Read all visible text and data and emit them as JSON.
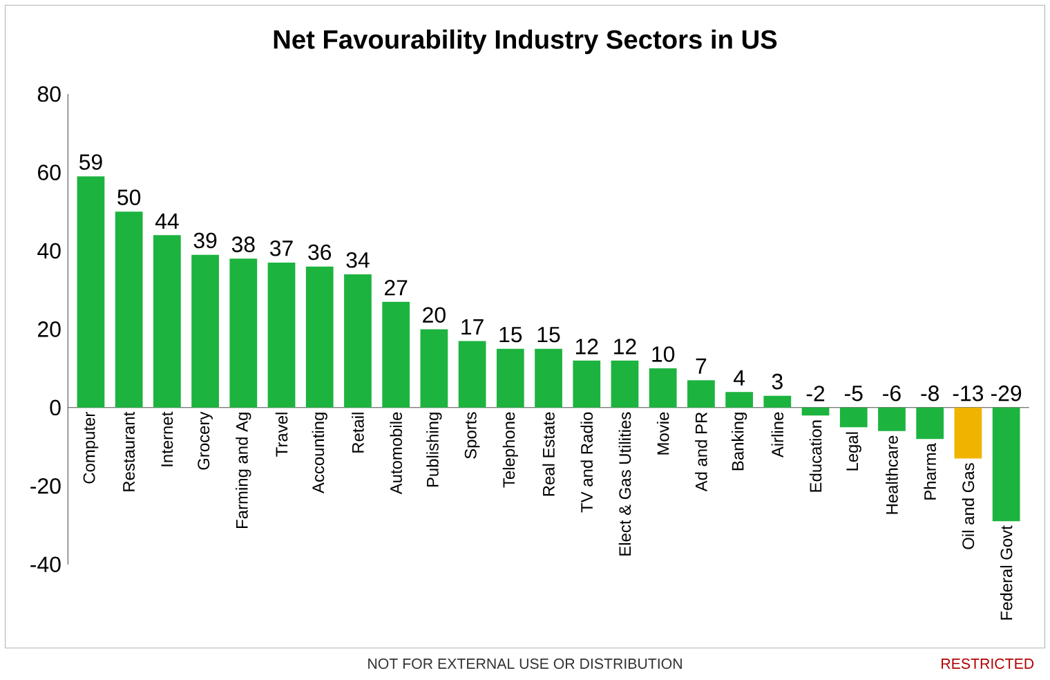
{
  "chart_data": {
    "type": "bar",
    "title": "Net Favourability Industry Sectors in US",
    "categories": [
      "Computer",
      "Restaurant",
      "Internet",
      "Grocery",
      "Farming and Ag",
      "Travel",
      "Accounting",
      "Retail",
      "Automobile",
      "Publishing",
      "Sports",
      "Telephone",
      "Real Estate",
      "TV and Radio",
      "Elect & Gas Utilities",
      "Movie",
      "Ad and PR",
      "Banking",
      "Airline",
      "Education",
      "Legal",
      "Healthcare",
      "Pharma",
      "Oil and Gas",
      "Federal Govt"
    ],
    "values": [
      59,
      50,
      44,
      39,
      38,
      37,
      36,
      34,
      27,
      20,
      17,
      15,
      15,
      12,
      12,
      10,
      7,
      4,
      3,
      -2,
      -5,
      -6,
      -8,
      -13,
      -29
    ],
    "value_labels": [
      "59",
      "50",
      "44",
      "39",
      "38",
      "37",
      "36",
      "34",
      "27",
      "20",
      "17",
      "15",
      "15",
      "12",
      "12",
      "10",
      "7",
      "4",
      "3",
      "-2",
      "-5",
      "-6",
      "-8",
      "-13",
      "-29"
    ],
    "colors": [
      "#1db33f",
      "#1db33f",
      "#1db33f",
      "#1db33f",
      "#1db33f",
      "#1db33f",
      "#1db33f",
      "#1db33f",
      "#1db33f",
      "#1db33f",
      "#1db33f",
      "#1db33f",
      "#1db33f",
      "#1db33f",
      "#1db33f",
      "#1db33f",
      "#1db33f",
      "#1db33f",
      "#1db33f",
      "#1db33f",
      "#1db33f",
      "#1db33f",
      "#1db33f",
      "#f0b400",
      "#1db33f"
    ],
    "ylim": [
      -40,
      80
    ],
    "yticks": [
      -40,
      -20,
      0,
      20,
      40,
      60,
      80
    ],
    "grid": false,
    "annotations": [
      "NOT FOR EXTERNAL USE OR DISTRIBUTION",
      "RESTRICTED"
    ]
  }
}
